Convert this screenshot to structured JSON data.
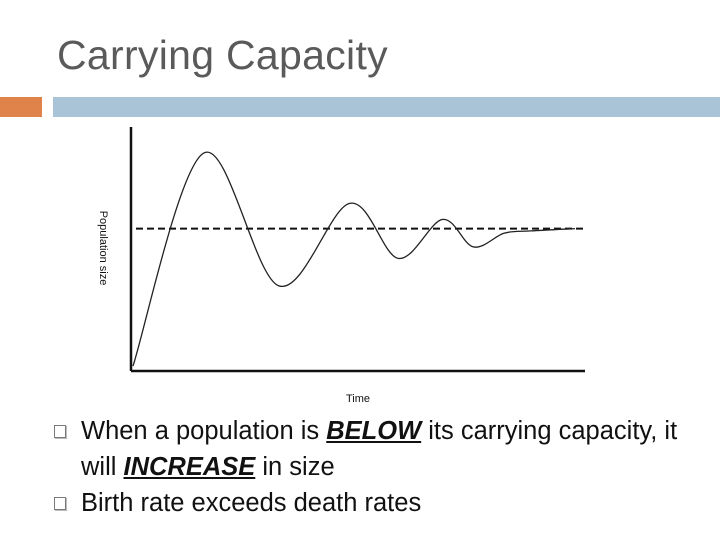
{
  "slide": {
    "title": "Carrying Capacity"
  },
  "colors": {
    "title": "#5a5a5a",
    "accent_orange": "#e0834a",
    "accent_blue": "#a9c4d6",
    "curve": "#222222"
  },
  "chart_data": {
    "type": "line",
    "xlabel": "Time",
    "ylabel": "Population size",
    "x_tick_labels": [],
    "y_tick_labels": [],
    "carrying_capacity_line": {
      "style": "dashed",
      "y": 0.6
    },
    "series": [
      {
        "values": [
          [
            0.0,
            0.0
          ],
          [
            0.16,
            0.93
          ],
          [
            0.33,
            0.35
          ],
          [
            0.49,
            0.71
          ],
          [
            0.6,
            0.47
          ],
          [
            0.7,
            0.64
          ],
          [
            0.77,
            0.52
          ],
          [
            0.84,
            0.58
          ],
          [
            0.9,
            0.59
          ],
          [
            1.0,
            0.6
          ]
        ]
      }
    ],
    "grid": false,
    "legend": "none"
  },
  "bullets": [
    {
      "parts": [
        {
          "text": "When a population is ",
          "emphasis": false
        },
        {
          "text": "BELOW",
          "emphasis": true
        },
        {
          "text": " its carrying capacity, it will ",
          "emphasis": false
        },
        {
          "text": "INCREASE",
          "emphasis": true
        },
        {
          "text": " in size",
          "emphasis": false
        }
      ]
    },
    {
      "parts": [
        {
          "text": "Birth rate exceeds death rates",
          "emphasis": false
        }
      ]
    }
  ]
}
